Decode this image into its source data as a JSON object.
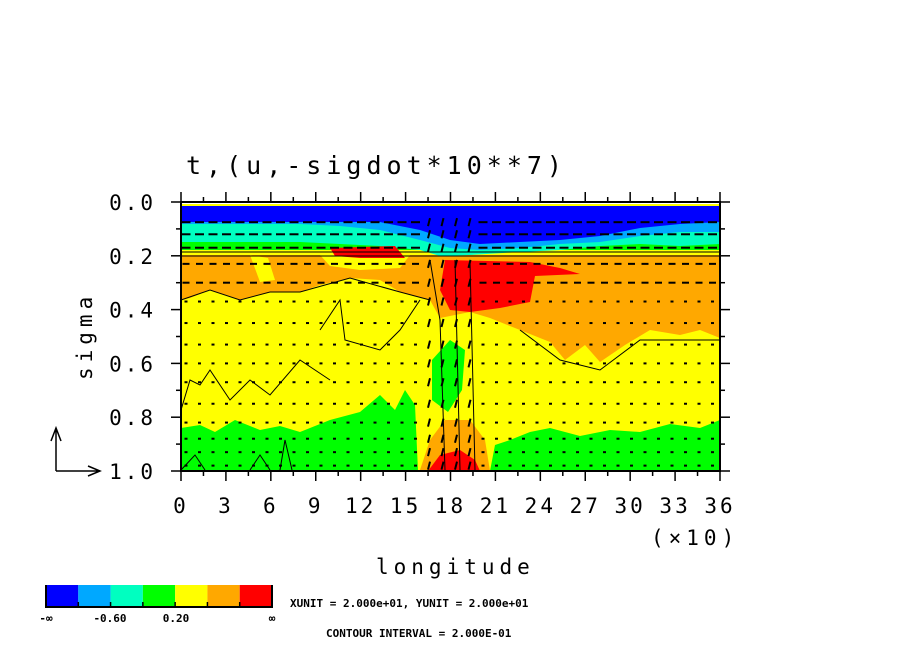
{
  "chart_data": {
    "type": "heatmap",
    "subtype": "filled contour with vector arrows",
    "title": "t,(u,-sigdot*10**7)",
    "xlabel": "longitude",
    "ylabel": "sigma",
    "x_multiplier": "(×10)",
    "xlim": [
      0,
      360
    ],
    "ylim": [
      0.0,
      1.0
    ],
    "y_reversed": true,
    "x_ticks": [
      "0",
      "3",
      "6",
      "9",
      "12",
      "15",
      "18",
      "21",
      "24",
      "27",
      "30",
      "33",
      "36"
    ],
    "y_ticks": [
      "0.0",
      "0.2",
      "0.4",
      "0.6",
      "0.8",
      "1.0"
    ],
    "colorbar": {
      "colors": [
        "#0000ff",
        "#00a8ff",
        "#00ffc0",
        "#00ff00",
        "#ffff00",
        "#ffa800",
        "#ff0000"
      ],
      "labels": [
        "-∞",
        "-0.60",
        "0.20",
        "∞"
      ]
    },
    "unit_text": "XUNIT = 2.000e+01, YUNIT = 2.000e+01",
    "contour_interval_text": "CONTOUR INTERVAL = 2.000E-01"
  }
}
